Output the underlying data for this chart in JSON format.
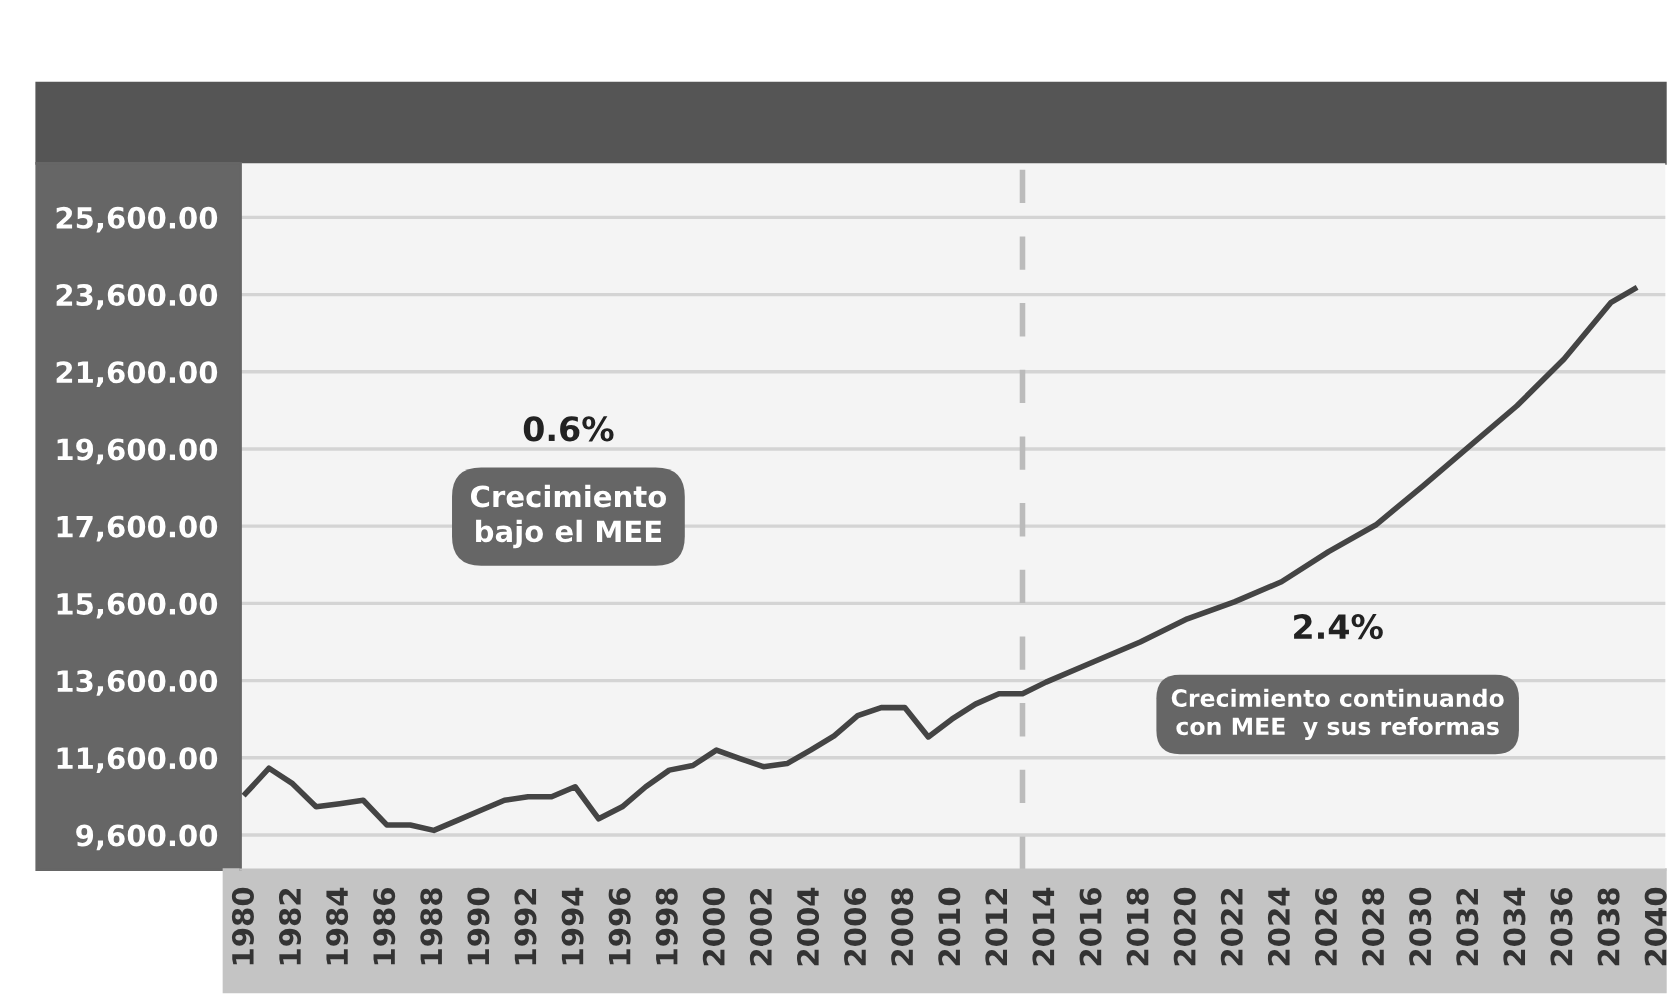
{
  "chart_data": {
    "type": "line",
    "x": [
      1980,
      1981,
      1982,
      1983,
      1984,
      1985,
      1986,
      1987,
      1988,
      1989,
      1990,
      1991,
      1992,
      1993,
      1994,
      1995,
      1996,
      1997,
      1998,
      1999,
      2000,
      2001,
      2002,
      2003,
      2004,
      2005,
      2006,
      2007,
      2008,
      2009,
      2010,
      2011,
      2012,
      2013,
      2014,
      2016,
      2018,
      2020,
      2022,
      2024,
      2026,
      2028,
      2030,
      2032,
      2034,
      2036,
      2038,
      2039
    ],
    "series": [
      {
        "color": "#444444",
        "values": [
          10670,
          11330,
          10930,
          10330,
          10410,
          10500,
          9860,
          9860,
          9720,
          9980,
          10240,
          10500,
          10590,
          10590,
          10850,
          10020,
          10330,
          10850,
          11280,
          11400,
          11800,
          11580,
          11370,
          11450,
          11800,
          12170,
          12690,
          12900,
          12900,
          12140,
          12600,
          12990,
          13260,
          13260,
          13560,
          14080,
          14600,
          15200,
          15640,
          16160,
          16940,
          17630,
          18640,
          19680,
          20720,
          21930,
          23400,
          23750
        ]
      }
    ],
    "xlim": [
      1979.8,
      2040.3
    ],
    "xticks": [
      1980,
      1982,
      1984,
      1986,
      1988,
      1990,
      1992,
      1994,
      1996,
      1998,
      2000,
      2002,
      2004,
      2006,
      2008,
      2010,
      2012,
      2014,
      2016,
      2018,
      2020,
      2022,
      2024,
      2026,
      2028,
      2030,
      2032,
      2034,
      2036,
      2038,
      2040
    ],
    "ylim": [
      8700,
      27000
    ],
    "yticks": [
      {
        "value": 9600,
        "label": "9,600.00"
      },
      {
        "value": 11600,
        "label": "11,600.00"
      },
      {
        "value": 13600,
        "label": "13,600.00"
      },
      {
        "value": 15600,
        "label": "15,600.00"
      },
      {
        "value": 17600,
        "label": "17,600.00"
      },
      {
        "value": 19600,
        "label": "19,600.00"
      },
      {
        "value": 21600,
        "label": "21,600.00"
      },
      {
        "value": 23600,
        "label": "23,600.00"
      },
      {
        "value": 25600,
        "label": "25,600.00"
      }
    ],
    "grid": "y",
    "marker": "none",
    "line_style": "solid",
    "ref_lines": [
      {
        "axis": "x",
        "value": 2013,
        "color": "#bbbbbb",
        "line_style": "dashed"
      }
    ],
    "annotations": [
      "0.6%",
      "Crecimiento\nbajo el MEE",
      "2.4%",
      "Crecimiento continuando\ncon MEE  y sus reformas"
    ]
  }
}
